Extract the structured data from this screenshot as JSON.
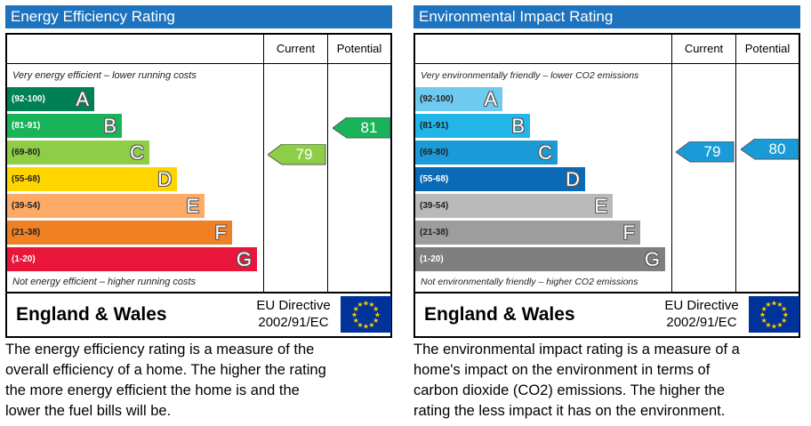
{
  "chart_data": [
    {
      "type": "bar",
      "title": "Energy Efficiency Rating",
      "column_headers": [
        "Current",
        "Potential"
      ],
      "top_note": "Very energy efficient – lower running costs",
      "bottom_note": "Not energy efficient – higher running costs",
      "bands": [
        {
          "range": "(92-100)",
          "letter": "A",
          "color": "#008054"
        },
        {
          "range": "(81-91)",
          "letter": "B",
          "color": "#19b459"
        },
        {
          "range": "(69-80)",
          "letter": "C",
          "color": "#8dce46"
        },
        {
          "range": "(55-68)",
          "letter": "D",
          "color": "#ffd500"
        },
        {
          "range": "(39-54)",
          "letter": "E",
          "color": "#fcaa65"
        },
        {
          "range": "(21-38)",
          "letter": "F",
          "color": "#ef8023"
        },
        {
          "range": "(1-20)",
          "letter": "G",
          "color": "#e9153b"
        }
      ],
      "current": {
        "value": "79",
        "band": "C",
        "color": "#8dce46"
      },
      "potential": {
        "value": "81",
        "band": "B",
        "color": "#19b459"
      },
      "region": "England & Wales",
      "directive_line1": "EU Directive",
      "directive_line2": "2002/91/EC",
      "description": "The energy efficiency rating is a measure of the\noverall efficiency of a home.  The higher the rating\nthe more energy efficient the home is and the\nlower the fuel bills will be."
    },
    {
      "type": "bar",
      "title": "Environmental Impact Rating",
      "column_headers": [
        "Current",
        "Potential"
      ],
      "top_note": "Very environmentally friendly – lower CO2 emissions",
      "bottom_note": "Not environmentally friendly – higher CO2 emissions",
      "bands": [
        {
          "range": "(92-100)",
          "letter": "A",
          "color": "#6fcaf0"
        },
        {
          "range": "(81-91)",
          "letter": "B",
          "color": "#23b5e8"
        },
        {
          "range": "(69-80)",
          "letter": "C",
          "color": "#1a9bd7"
        },
        {
          "range": "(55-68)",
          "letter": "D",
          "color": "#0b6ab5"
        },
        {
          "range": "(39-54)",
          "letter": "E",
          "color": "#b9b9b9"
        },
        {
          "range": "(21-38)",
          "letter": "F",
          "color": "#9d9d9d"
        },
        {
          "range": "(1-20)",
          "letter": "G",
          "color": "#7f7f7f"
        }
      ],
      "current": {
        "value": "79",
        "band": "C",
        "color": "#1a9bd7"
      },
      "potential": {
        "value": "80",
        "band": "C",
        "color": "#1a9bd7"
      },
      "region": "England & Wales",
      "directive_line1": "EU Directive",
      "directive_line2": "2002/91/EC",
      "description": "The environmental impact rating is a measure of a\nhome's impact on the environment in terms of\ncarbon dioxide (CO2) emissions.  The higher the\nrating the less impact it has on the environment."
    }
  ],
  "colors": {
    "title_bar": "#1e73be",
    "eu_flag": "#003399",
    "eu_stars": "#ffcc00"
  }
}
